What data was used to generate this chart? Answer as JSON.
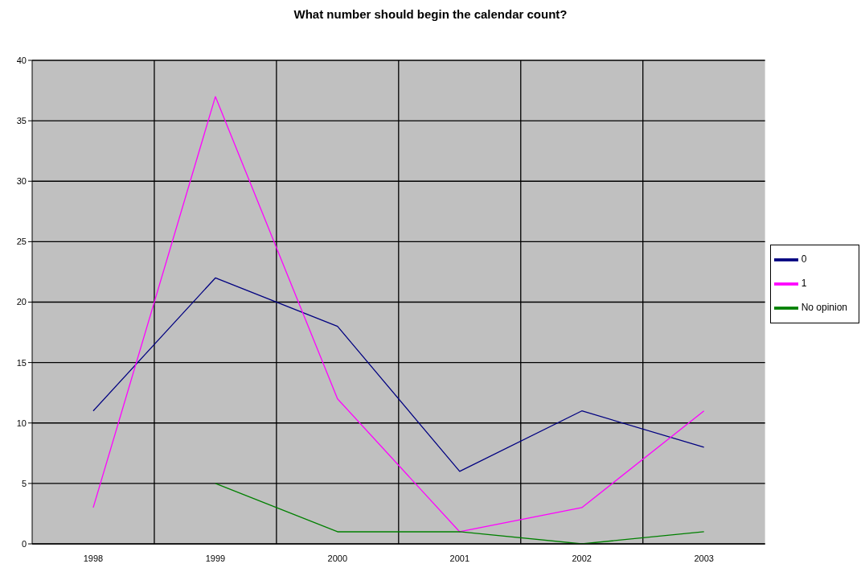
{
  "chart_data": {
    "type": "line",
    "title": "What number should begin the calendar count?",
    "categories": [
      "1998",
      "1999",
      "2000",
      "2001",
      "2002",
      "2003"
    ],
    "series": [
      {
        "name": "0",
        "color": "#000080",
        "values": [
          11,
          22,
          18,
          6,
          11,
          8
        ]
      },
      {
        "name": "1",
        "color": "#ff00ff",
        "values": [
          3,
          37,
          12,
          1,
          3,
          11
        ]
      },
      {
        "name": "No opinion",
        "color": "#008000",
        "values": [
          null,
          5,
          1,
          1,
          0,
          1
        ]
      }
    ],
    "ylim": [
      0,
      40
    ],
    "yticks": [
      0,
      5,
      10,
      15,
      20,
      25,
      30,
      35,
      40
    ],
    "grid": true,
    "legend": "right",
    "marker": "none",
    "line_style": "solid"
  }
}
